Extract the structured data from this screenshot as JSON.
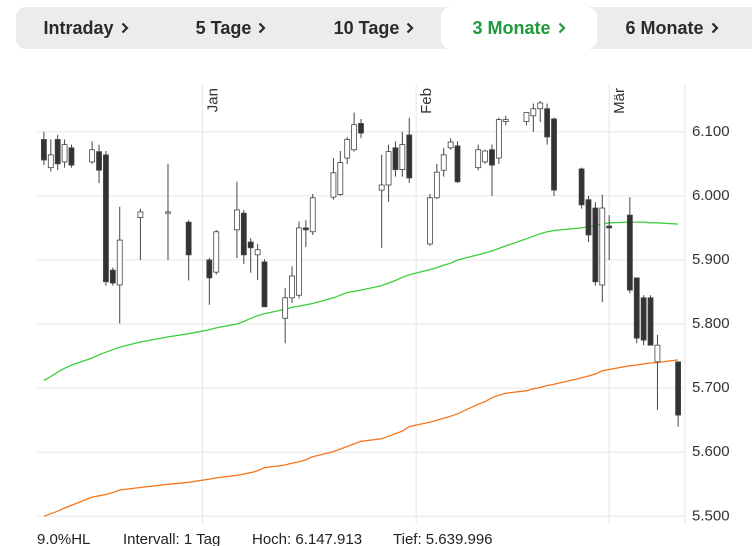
{
  "tabs": [
    {
      "label": "Intraday"
    },
    {
      "label": "5 Tage"
    },
    {
      "label": "10 Tage"
    },
    {
      "label": "3 Monate",
      "active": true
    },
    {
      "label": "6 Monate"
    }
  ],
  "chart_data": {
    "type": "candlestick",
    "x": [
      1,
      2,
      3,
      4,
      5,
      8,
      9,
      10,
      11,
      12,
      15,
      19,
      22,
      25,
      26,
      29,
      30,
      31,
      32,
      33,
      36,
      37,
      38,
      39,
      40,
      43,
      44,
      45,
      46,
      47,
      50,
      51,
      52,
      53,
      54,
      57,
      58,
      59,
      60,
      61,
      64,
      65,
      66,
      67,
      68,
      71,
      72,
      73,
      74,
      75,
      79,
      80,
      81,
      82,
      83,
      86,
      87,
      88,
      89,
      90,
      93
    ],
    "open": [
      6088,
      6044,
      6088,
      6053,
      6075,
      6053,
      6069,
      6064,
      5884,
      5861,
      5966,
      5973,
      5959,
      5900,
      5881,
      5947,
      5973,
      5928,
      5908,
      5897,
      5809,
      5841,
      5845,
      5950,
      5944,
      5998,
      6002,
      6059,
      6072,
      6113,
      6009,
      6017,
      6075,
      6041,
      6095,
      5925,
      5997,
      6040,
      6075,
      6078,
      6044,
      6053,
      6072,
      6059,
      6116,
      6116,
      6125,
      6136,
      6136,
      6120,
      6042,
      5994,
      5981,
      5861,
      5953,
      5970,
      5872,
      5841,
      5841,
      5741,
      5741
    ],
    "high": [
      6100,
      6088,
      6095,
      6088,
      6080,
      6085,
      6080,
      6070,
      5888,
      5983,
      5980,
      6050,
      5962,
      5903,
      5947,
      6022,
      5978,
      5934,
      5925,
      5901,
      5856,
      5890,
      5960,
      5962,
      6003,
      6059,
      6070,
      6092,
      6130,
      6120,
      6064,
      6080,
      6085,
      6100,
      6122,
      6003,
      6050,
      6075,
      6090,
      6085,
      6080,
      6072,
      6080,
      6122,
      6125,
      6130,
      6144,
      6148,
      6144,
      6122,
      6044,
      6000,
      5990,
      6002,
      5970,
      5998,
      5870,
      5845,
      5845,
      5783,
      5741
    ],
    "low": [
      6048,
      6038,
      6040,
      6044,
      6044,
      6050,
      6020,
      5860,
      5860,
      5801,
      5900,
      5900,
      5868,
      5830,
      5877,
      5903,
      5894,
      5880,
      5869,
      5828,
      5770,
      5833,
      5840,
      5920,
      5939,
      5994,
      6000,
      6050,
      6069,
      6090,
      5919,
      5991,
      6030,
      6030,
      6020,
      5922,
      5995,
      6030,
      6072,
      6020,
      6040,
      6050,
      6000,
      6050,
      6110,
      6110,
      6100,
      6115,
      6080,
      6000,
      5980,
      5928,
      5860,
      5834,
      5900,
      5848,
      5770,
      5767,
      5770,
      5666,
      5640
    ],
    "close": [
      6056,
      6064,
      6050,
      6080,
      6048,
      6072,
      6040,
      5866,
      5864,
      5931,
      5975,
      5975,
      5908,
      5872,
      5944,
      5978,
      5908,
      5919,
      5916,
      5827,
      5841,
      5875,
      5950,
      5947,
      5997,
      6036,
      6052,
      6088,
      6111,
      6098,
      6017,
      6069,
      6041,
      6080,
      6028,
      5997,
      6037,
      6064,
      6084,
      6022,
      6072,
      6070,
      6048,
      6119,
      6119,
      6130,
      6136,
      6145,
      6092,
      6009,
      5986,
      5939,
      5866,
      5981,
      5950,
      5853,
      5778,
      5775,
      5767,
      5767,
      5658
    ],
    "up_color": "#ffffff",
    "down_color": "#333333",
    "lines": [
      {
        "color": "#3ccf3c",
        "values": [
          5712,
          5718,
          5725,
          5731,
          5736,
          5747,
          5752,
          5756,
          5760,
          5764,
          5772,
          5780,
          5785,
          5791,
          5794,
          5800,
          5804,
          5809,
          5813,
          5816,
          5823,
          5826,
          5828,
          5830,
          5832,
          5841,
          5845,
          5849,
          5851,
          5853,
          5860,
          5864,
          5868,
          5873,
          5877,
          5885,
          5888,
          5892,
          5895,
          5900,
          5908,
          5911,
          5914,
          5918,
          5922,
          5933,
          5937,
          5941,
          5944,
          5946,
          5950,
          5952,
          5954,
          5956,
          5958,
          5959,
          5959,
          5959,
          5958,
          5958,
          5956
        ]
      },
      {
        "color": "#f5761a",
        "values": [
          5500,
          5504,
          5508,
          5513,
          5517,
          5530,
          5532,
          5534,
          5537,
          5541,
          5545,
          5550,
          5553,
          5558,
          5560,
          5564,
          5566,
          5568,
          5571,
          5576,
          5580,
          5583,
          5585,
          5588,
          5593,
          5601,
          5605,
          5609,
          5613,
          5617,
          5621,
          5625,
          5629,
          5633,
          5640,
          5647,
          5650,
          5653,
          5656,
          5660,
          5675,
          5679,
          5685,
          5689,
          5692,
          5696,
          5699,
          5701,
          5704,
          5706,
          5716,
          5719,
          5722,
          5727,
          5729,
          5735,
          5736,
          5738,
          5739,
          5740,
          5744
        ]
      }
    ],
    "xlim": [
      0,
      94
    ],
    "xticks": [
      {
        "value": 24,
        "label": "Jan"
      },
      {
        "value": 55,
        "label": "Feb"
      },
      {
        "value": 83,
        "label": "Mär"
      }
    ],
    "ylim": [
      5488,
      6173
    ],
    "yticks": [
      {
        "value": 5500,
        "label": "5.500"
      },
      {
        "value": 5600,
        "label": "5.600"
      },
      {
        "value": 5700,
        "label": "5.700"
      },
      {
        "value": 5800,
        "label": "5.800"
      },
      {
        "value": 5900,
        "label": "5.900"
      },
      {
        "value": 6000,
        "label": "6.000"
      },
      {
        "value": 6100,
        "label": "6.100"
      }
    ],
    "grid": true
  },
  "footer": [
    "9.0%HL",
    "Intervall: 1 Tag",
    "Hoch: 6.147.913",
    "Tief: 5.639.996"
  ]
}
